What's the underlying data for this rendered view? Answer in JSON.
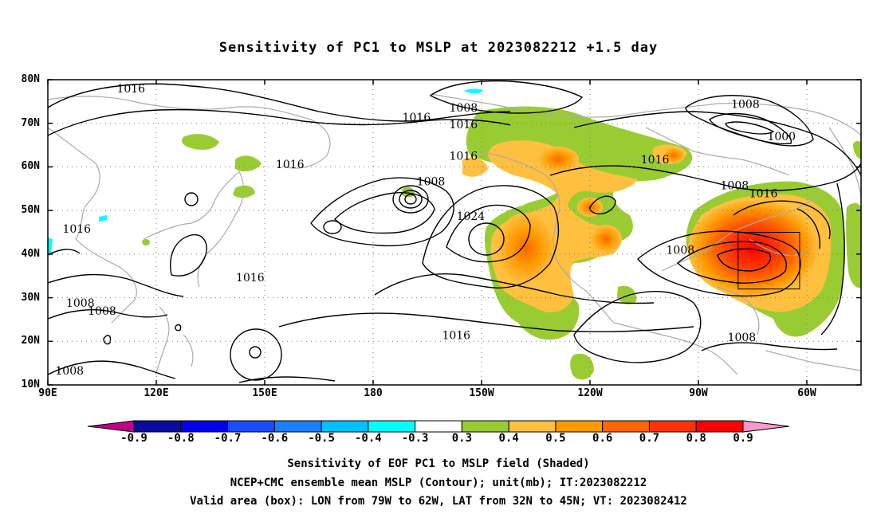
{
  "title": "Sensitivity of PC1 to MSLP at 2023082212 +1.5 day",
  "axes": {
    "lat_ticks": [
      {
        "label": "80N",
        "lat": 80
      },
      {
        "label": "70N",
        "lat": 70
      },
      {
        "label": "60N",
        "lat": 60
      },
      {
        "label": "50N",
        "lat": 50
      },
      {
        "label": "40N",
        "lat": 40
      },
      {
        "label": "30N",
        "lat": 30
      },
      {
        "label": "20N",
        "lat": 20
      },
      {
        "label": "10N",
        "lat": 10
      }
    ],
    "lon_ticks": [
      {
        "label": "90E",
        "lon": 90
      },
      {
        "label": "120E",
        "lon": 120
      },
      {
        "label": "150E",
        "lon": 150
      },
      {
        "label": "180",
        "lon": 180
      },
      {
        "label": "150W",
        "lon": 210
      },
      {
        "label": "120W",
        "lon": 240
      },
      {
        "label": "90W",
        "lon": 270
      },
      {
        "label": "60W",
        "lon": 300
      }
    ],
    "lon_range": [
      90,
      315
    ],
    "lat_range": [
      10,
      80
    ],
    "gridlines": "dotted"
  },
  "contour_labels": [
    {
      "text": "1016",
      "lon": 113,
      "lat": 77.8
    },
    {
      "text": "1008",
      "lon": 205,
      "lat": 73.4
    },
    {
      "text": "1016",
      "lon": 192,
      "lat": 71.2
    },
    {
      "text": "1016",
      "lon": 205,
      "lat": 69.6
    },
    {
      "text": "1008",
      "lon": 283,
      "lat": 74.2
    },
    {
      "text": "1000",
      "lon": 293,
      "lat": 66.8
    },
    {
      "text": "1016",
      "lon": 205,
      "lat": 62.4
    },
    {
      "text": "1016",
      "lon": 157,
      "lat": 60.4
    },
    {
      "text": "1008",
      "lon": 196,
      "lat": 56.5
    },
    {
      "text": "1016",
      "lon": 258,
      "lat": 61.5
    },
    {
      "text": "1008",
      "lon": 280,
      "lat": 55.6
    },
    {
      "text": "1016",
      "lon": 288,
      "lat": 53.8
    },
    {
      "text": "1024",
      "lon": 207,
      "lat": 48.6
    },
    {
      "text": "1016",
      "lon": 98,
      "lat": 45.6
    },
    {
      "text": "1008",
      "lon": 265,
      "lat": 40.8
    },
    {
      "text": "1016",
      "lon": 146,
      "lat": 34.5
    },
    {
      "text": "1008",
      "lon": 99,
      "lat": 28.6
    },
    {
      "text": "1008",
      "lon": 105,
      "lat": 26.8
    },
    {
      "text": "1016",
      "lon": 203,
      "lat": 21.2
    },
    {
      "text": "1008",
      "lon": 282,
      "lat": 20.8
    },
    {
      "text": "1008",
      "lon": 96,
      "lat": 13.1
    }
  ],
  "valid_box": {
    "lon_min": 281,
    "lon_max": 298,
    "lat_min": 32,
    "lat_max": 45
  },
  "colorbar": {
    "labels": [
      "-0.9",
      "-0.8",
      "-0.7",
      "-0.6",
      "-0.5",
      "-0.4",
      "-0.3",
      "0.3",
      "0.4",
      "0.5",
      "0.6",
      "0.7",
      "0.8",
      "0.9"
    ],
    "colors": [
      "#0b0b9e",
      "#0000e6",
      "#1a4dff",
      "#1a80ff",
      "#00c0ff",
      "#00ffff",
      "#ffffff",
      "#99cc33",
      "#ffc040",
      "#ff9900",
      "#ff6600",
      "#ff3300",
      "#ff0000"
    ],
    "low_end": "#c0008a",
    "high_end": "#ff99cc"
  },
  "captions": {
    "line1": "Sensitivity of EOF PC1 to MSLP field (Shaded)",
    "line2": "NCEP+CMC ensemble mean MSLP (Contour); unit(mb); IT:2023082212",
    "line3": "Valid area (box): LON from 79W to 62W, LAT from 32N to 45N; VT: 2023082412"
  }
}
